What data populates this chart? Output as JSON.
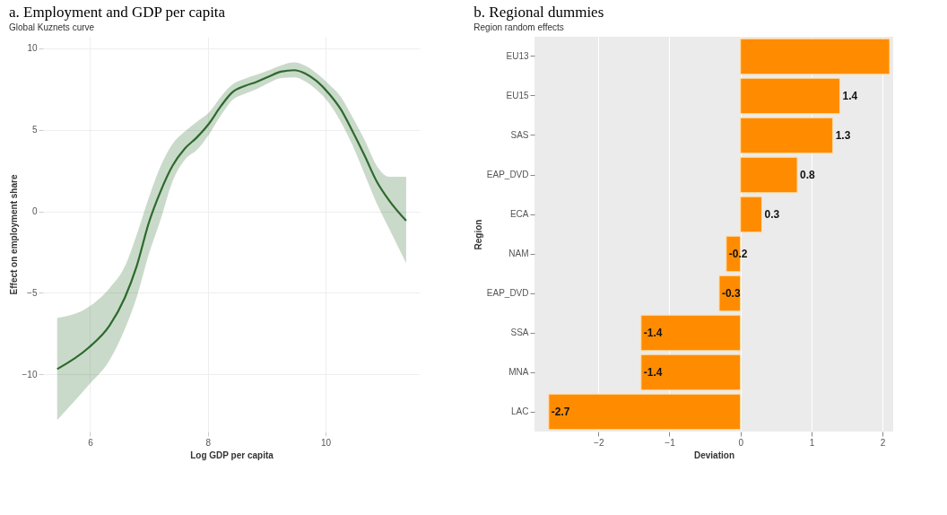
{
  "chart_data": [
    {
      "type": "line",
      "title": "a.    Employment and GDP per capita",
      "subtitle": "Global Kuznets curve",
      "xlabel": "Log GDP per capita",
      "ylabel": "Effect on employment share",
      "xlim": [
        5.2,
        11.6
      ],
      "ylim": [
        -13.5,
        10.7
      ],
      "xticks": [
        6,
        8,
        10
      ],
      "yticks": [
        -10,
        -5,
        0,
        5,
        10
      ],
      "grid": true,
      "series": [
        {
          "color": "#2d6a2d",
          "x": [
            5.44,
            5.97,
            6.33,
            6.59,
            6.79,
            7.0,
            7.2,
            7.4,
            7.61,
            7.81,
            8.02,
            8.22,
            8.42,
            8.63,
            8.83,
            9.04,
            9.24,
            9.47,
            9.65,
            9.85,
            10.06,
            10.26,
            10.46,
            10.67,
            10.87,
            11.08,
            11.37
          ],
          "values": [
            -9.67,
            -8.37,
            -7.0,
            -5.29,
            -3.37,
            -0.67,
            1.25,
            2.79,
            3.85,
            4.52,
            5.38,
            6.44,
            7.31,
            7.69,
            7.94,
            8.27,
            8.56,
            8.65,
            8.46,
            7.98,
            7.21,
            6.25,
            4.9,
            3.37,
            1.83,
            0.67,
            -0.58
          ],
          "lower": [
            -12.8,
            -10.67,
            -9.13,
            -7.21,
            -5.29,
            -2.6,
            -0.48,
            1.83,
            3.17,
            3.75,
            4.71,
            5.87,
            6.83,
            7.21,
            7.5,
            7.88,
            8.17,
            8.21,
            7.98,
            7.44,
            6.63,
            5.48,
            4.04,
            2.21,
            0.48,
            -1.06,
            -3.17
          ],
          "upper": [
            -6.54,
            -5.87,
            -4.71,
            -3.37,
            -1.44,
            0.87,
            2.79,
            4.13,
            4.9,
            5.48,
            6.06,
            7.02,
            7.79,
            8.13,
            8.37,
            8.65,
            8.94,
            9.13,
            8.94,
            8.46,
            7.79,
            7.02,
            5.77,
            4.33,
            2.79,
            2.12,
            2.12
          ]
        }
      ]
    },
    {
      "type": "bar",
      "orientation": "horizontal",
      "title": "b.    Regional dummies",
      "subtitle": "Region random effects",
      "xlabel": "Deviation",
      "ylabel": "Region",
      "xlim": [
        -2.9,
        2.15
      ],
      "xticks": [
        -2,
        -1,
        0,
        1,
        2
      ],
      "grid": true,
      "categories": [
        "EU13",
        "EU15",
        "SAS",
        "EAP_DVD",
        "ECA",
        "NAM",
        "EAP_DVD",
        "SSA",
        "MNA",
        "LAC"
      ],
      "series": [
        {
          "color": "#ff8c00",
          "values": [
            2.1,
            1.4,
            1.3,
            0.8,
            0.3,
            -0.2,
            -0.3,
            -1.4,
            -1.4,
            -2.7
          ],
          "value_labels": [
            null,
            "1.4",
            "1.3",
            "0.8",
            "0.3",
            "-0.2",
            "-0.3",
            "-1.4",
            "-1.4",
            "-2.7"
          ]
        }
      ]
    }
  ]
}
